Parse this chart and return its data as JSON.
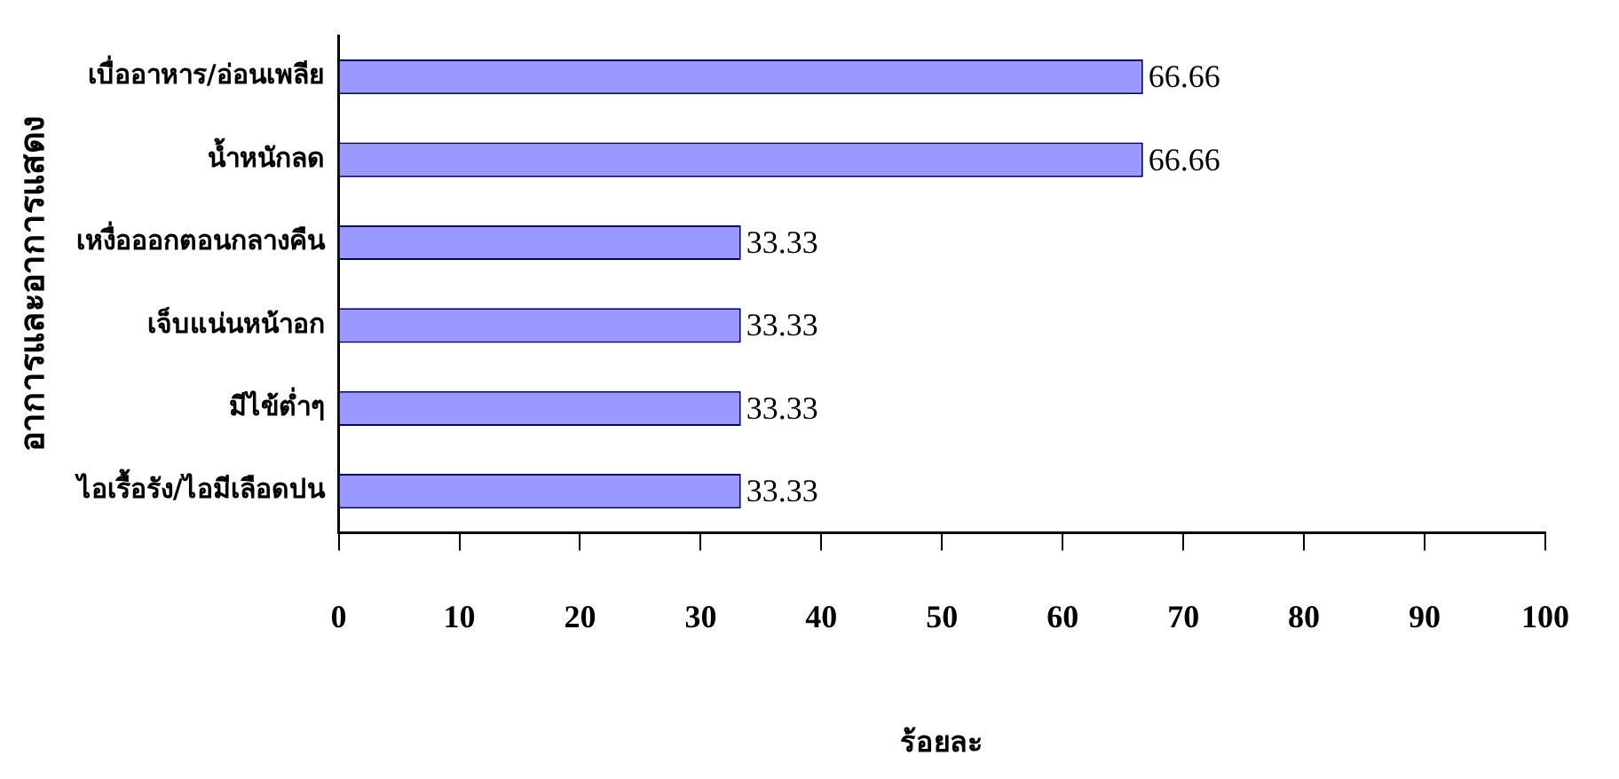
{
  "chart_data": {
    "type": "bar",
    "orientation": "horizontal",
    "categories": [
      "เบื่ออาหาร/อ่อนเพลีย",
      "น้ำหนักลด",
      "เหงื่อออกตอนกลางคืน",
      "เจ็บแน่นหน้าอก",
      "มีไข้ต่ำๆ",
      "ไอเรื้อรัง/ไอมีเลือดปน"
    ],
    "values": [
      66.66,
      66.66,
      33.33,
      33.33,
      33.33,
      33.33
    ],
    "color": "#9999ff",
    "xlabel": "ร้อยละ",
    "ylabel": "อาการและอาการแสดง",
    "xlim": [
      0,
      100
    ],
    "xticks": [
      0,
      10,
      20,
      30,
      40,
      50,
      60,
      70,
      80,
      90,
      100
    ],
    "grid": false,
    "legend": false,
    "data_labels": true
  }
}
